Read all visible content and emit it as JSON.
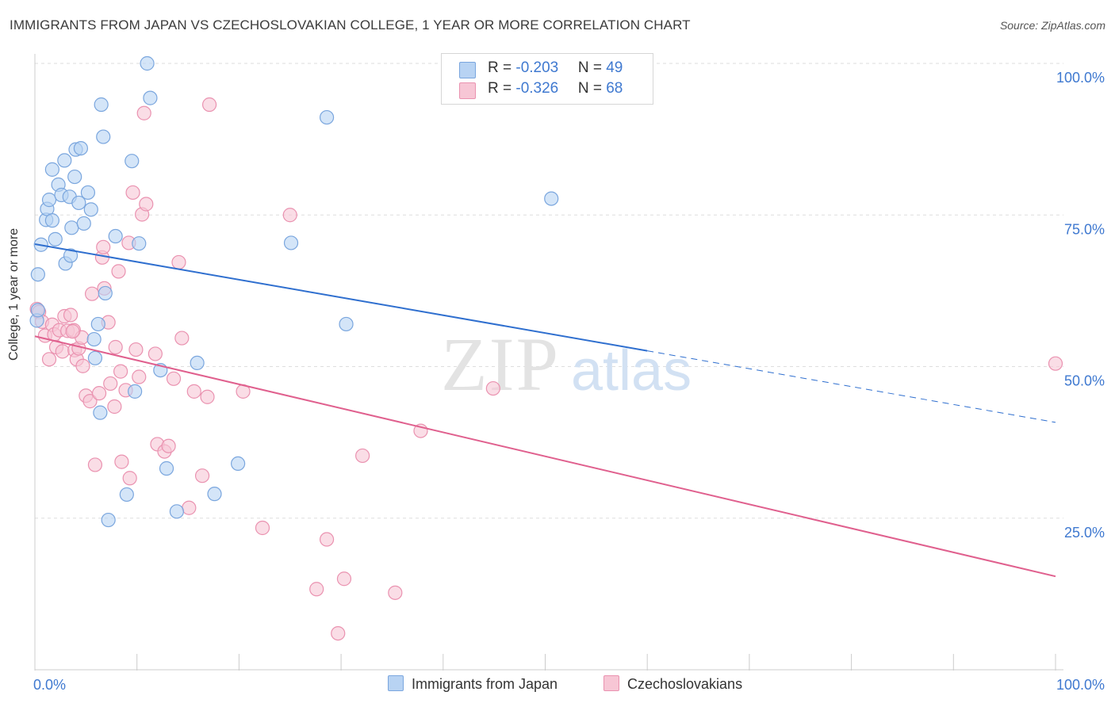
{
  "title": "IMMIGRANTS FROM JAPAN VS CZECHOSLOVAKIAN COLLEGE, 1 YEAR OR MORE CORRELATION CHART",
  "source": "Source: ZipAtlas.com",
  "watermark": {
    "zip": "ZIP",
    "atlas": "atlas"
  },
  "legend": {
    "rows": [
      {
        "r_label": "R = ",
        "r_value": "-0.203",
        "n_label": "N = ",
        "n_value": "49"
      },
      {
        "r_label": "R = ",
        "r_value": "-0.326",
        "n_label": "N = ",
        "n_value": "68"
      }
    ]
  },
  "colors": {
    "blue_fill": "#b8d3f3",
    "blue_stroke": "#7aa6de",
    "blue_line": "#2f6fcf",
    "pink_fill": "#f7c6d5",
    "pink_stroke": "#ea92b0",
    "pink_line": "#e0608e",
    "axis_text": "#3f79d0"
  },
  "chart_data": {
    "type": "scatter",
    "title": "IMMIGRANTS FROM JAPAN VS CZECHOSLOVAKIAN COLLEGE, 1 YEAR OR MORE CORRELATION CHART",
    "xlabel": "",
    "ylabel": "College, 1 year or more",
    "xlim": [
      0,
      100
    ],
    "ylim": [
      0,
      100
    ],
    "x_tick_labels": [
      "0.0%",
      "100.0%"
    ],
    "y_tick_labels": [
      "100.0%",
      "75.0%",
      "50.0%",
      "25.0%"
    ],
    "y_ticks": [
      100,
      75,
      50,
      25
    ],
    "grid": true,
    "legend_placement": "top-center",
    "series": [
      {
        "name": "Immigrants from Japan",
        "color": "#7aa6de",
        "trend": {
          "x": [
            0,
            60
          ],
          "y": [
            70.2,
            52.6
          ],
          "dashed_to": [
            100,
            40.8
          ]
        },
        "points": [
          [
            0.2,
            57.6
          ],
          [
            0.3,
            59.3
          ],
          [
            0.3,
            65.2
          ],
          [
            0.6,
            70.1
          ],
          [
            1.1,
            74.2
          ],
          [
            1.2,
            76.0
          ],
          [
            1.4,
            77.5
          ],
          [
            1.7,
            82.5
          ],
          [
            1.7,
            74.1
          ],
          [
            2.0,
            71.0
          ],
          [
            2.3,
            80.0
          ],
          [
            2.6,
            78.3
          ],
          [
            2.9,
            84.0
          ],
          [
            3.0,
            67.0
          ],
          [
            3.4,
            78.0
          ],
          [
            3.5,
            68.3
          ],
          [
            3.6,
            72.9
          ],
          [
            3.9,
            81.3
          ],
          [
            4.0,
            85.8
          ],
          [
            4.3,
            77.0
          ],
          [
            4.5,
            86.0
          ],
          [
            4.8,
            73.6
          ],
          [
            5.2,
            78.7
          ],
          [
            5.5,
            75.9
          ],
          [
            5.8,
            54.5
          ],
          [
            5.9,
            51.4
          ],
          [
            6.2,
            57.0
          ],
          [
            6.4,
            42.4
          ],
          [
            6.5,
            93.2
          ],
          [
            6.7,
            87.9
          ],
          [
            6.9,
            62.1
          ],
          [
            7.2,
            24.7
          ],
          [
            7.9,
            71.5
          ],
          [
            9.0,
            28.9
          ],
          [
            9.5,
            83.9
          ],
          [
            9.8,
            45.9
          ],
          [
            10.2,
            70.3
          ],
          [
            11.0,
            100.0
          ],
          [
            11.3,
            94.3
          ],
          [
            12.3,
            49.4
          ],
          [
            12.9,
            33.2
          ],
          [
            13.9,
            26.1
          ],
          [
            15.9,
            50.6
          ],
          [
            17.6,
            29.0
          ],
          [
            19.9,
            34.0
          ],
          [
            25.1,
            70.4
          ],
          [
            28.6,
            91.1
          ],
          [
            30.5,
            57.0
          ],
          [
            50.6,
            77.7
          ]
        ]
      },
      {
        "name": "Czechoslovakians",
        "color": "#ea92b0",
        "trend": {
          "x": [
            0,
            100
          ],
          "y": [
            55.0,
            15.4
          ]
        },
        "points": [
          [
            0.2,
            59.5
          ],
          [
            0.4,
            59.0
          ],
          [
            0.7,
            57.4
          ],
          [
            1.0,
            55.1
          ],
          [
            1.4,
            51.2
          ],
          [
            1.7,
            56.9
          ],
          [
            1.9,
            55.3
          ],
          [
            2.1,
            53.2
          ],
          [
            2.4,
            56.0
          ],
          [
            2.7,
            52.5
          ],
          [
            2.9,
            58.3
          ],
          [
            3.2,
            55.9
          ],
          [
            3.5,
            58.5
          ],
          [
            3.8,
            56.0
          ],
          [
            3.9,
            52.7
          ],
          [
            4.1,
            51.2
          ],
          [
            4.3,
            53.0
          ],
          [
            4.6,
            54.8
          ],
          [
            4.7,
            50.1
          ],
          [
            5.0,
            45.2
          ],
          [
            5.4,
            44.3
          ],
          [
            5.6,
            62.0
          ],
          [
            5.9,
            33.8
          ],
          [
            6.3,
            45.6
          ],
          [
            6.6,
            68.0
          ],
          [
            6.7,
            69.7
          ],
          [
            6.8,
            62.9
          ],
          [
            7.2,
            57.3
          ],
          [
            7.4,
            47.2
          ],
          [
            7.8,
            43.4
          ],
          [
            7.9,
            53.2
          ],
          [
            8.2,
            65.7
          ],
          [
            8.4,
            49.2
          ],
          [
            8.5,
            34.3
          ],
          [
            8.9,
            46.1
          ],
          [
            9.2,
            70.4
          ],
          [
            9.3,
            31.6
          ],
          [
            9.6,
            78.7
          ],
          [
            9.9,
            52.8
          ],
          [
            10.2,
            48.3
          ],
          [
            10.5,
            75.1
          ],
          [
            10.7,
            91.8
          ],
          [
            10.9,
            76.8
          ],
          [
            11.8,
            52.1
          ],
          [
            12.0,
            37.2
          ],
          [
            12.7,
            36.0
          ],
          [
            13.1,
            36.9
          ],
          [
            13.6,
            48.0
          ],
          [
            14.1,
            67.2
          ],
          [
            14.4,
            54.7
          ],
          [
            15.1,
            26.7
          ],
          [
            15.6,
            45.9
          ],
          [
            16.4,
            32.0
          ],
          [
            16.9,
            45.0
          ],
          [
            17.1,
            93.2
          ],
          [
            20.4,
            45.9
          ],
          [
            22.3,
            23.4
          ],
          [
            25.0,
            75.0
          ],
          [
            27.6,
            13.3
          ],
          [
            28.6,
            21.5
          ],
          [
            29.7,
            6.0
          ],
          [
            30.3,
            15.0
          ],
          [
            32.1,
            35.3
          ],
          [
            35.3,
            12.7
          ],
          [
            37.8,
            39.4
          ],
          [
            44.9,
            46.4
          ],
          [
            100.0,
            50.5
          ],
          [
            3.7,
            55.8
          ]
        ]
      }
    ]
  },
  "bottom_legend": [
    {
      "label": "Immigrants from Japan"
    },
    {
      "label": "Czechoslovakians"
    }
  ]
}
